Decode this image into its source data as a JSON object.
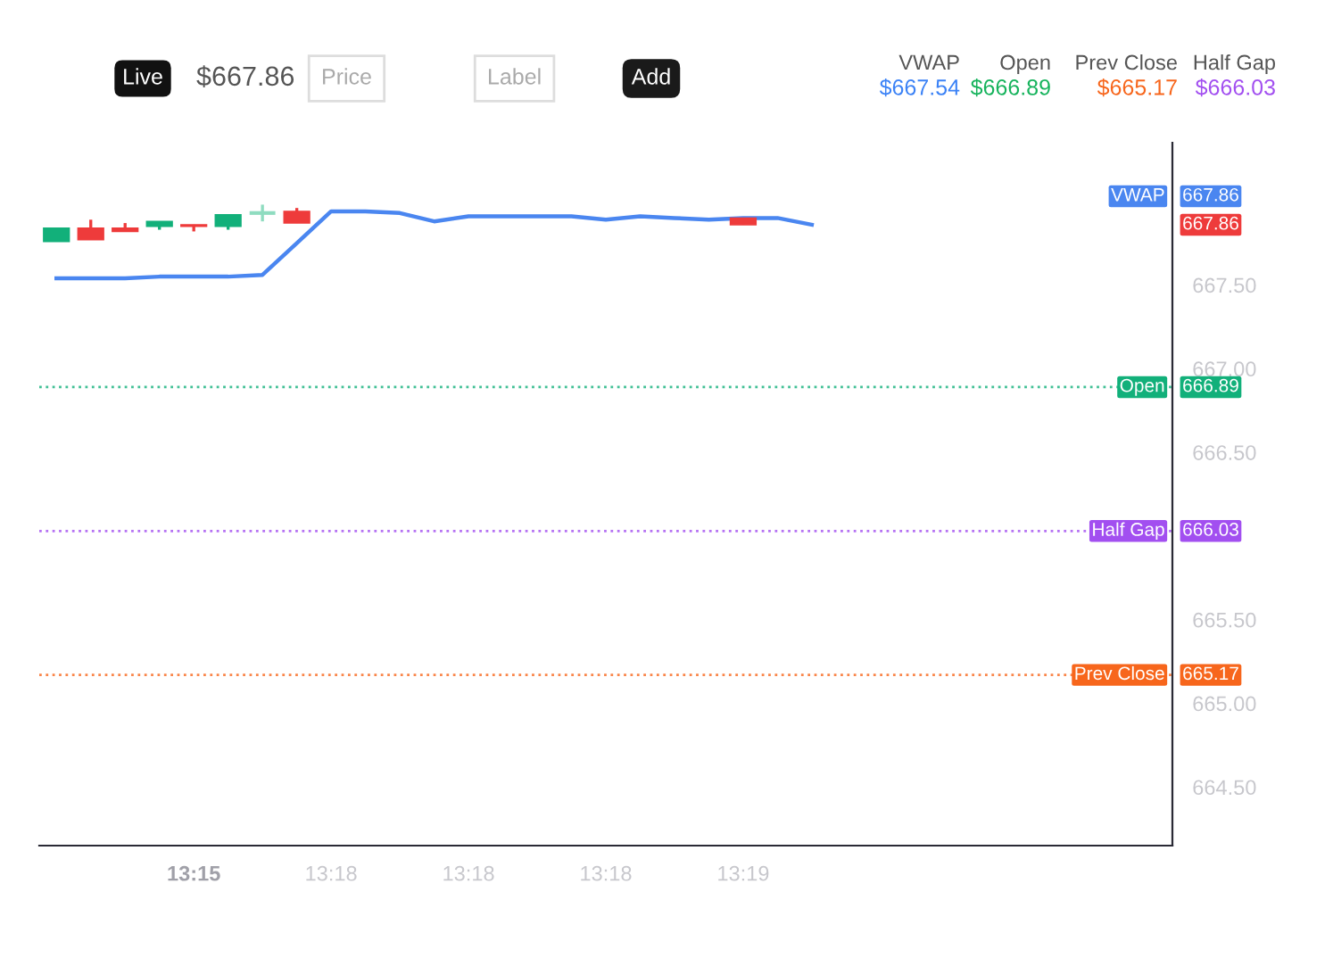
{
  "chart_data": {
    "type": "candlestick",
    "categories": [
      null,
      null,
      null,
      null,
      "13:15",
      null,
      null,
      null,
      "13:18",
      null,
      null,
      null,
      "13:18",
      null,
      null,
      null,
      "13:18",
      null,
      null,
      null,
      "13:19",
      null,
      null,
      null,
      null,
      null,
      null,
      null,
      null,
      null,
      null,
      null,
      null
    ],
    "ohlc": [
      [
        667.76,
        667.84,
        667.76,
        667.84
      ],
      [
        667.84,
        667.89,
        667.77,
        667.77
      ],
      [
        667.84,
        667.87,
        667.82,
        667.82
      ],
      [
        667.85,
        667.88,
        667.83,
        667.88
      ],
      [
        667.86,
        667.86,
        667.82,
        667.85
      ],
      [
        667.85,
        667.92,
        667.83,
        667.92
      ],
      [
        667.93,
        667.98,
        667.88,
        667.93
      ],
      [
        667.94,
        667.96,
        667.87,
        667.87
      ],
      null,
      null,
      null,
      null,
      null,
      null,
      null,
      null,
      null,
      null,
      null,
      null,
      [
        667.9,
        667.9,
        667.86,
        667.86
      ],
      null,
      null,
      null,
      null,
      null,
      null,
      null,
      null,
      null,
      null,
      null,
      null
    ],
    "colors": [
      "#12b07a",
      "#ee3b3b",
      "#ee3b3b",
      "#12b07a",
      "#ee3b3b",
      "#12b07a",
      "#8fdcc0",
      "#ee3b3b",
      null,
      null,
      null,
      null,
      null,
      null,
      null,
      null,
      null,
      null,
      null,
      null,
      "#ee3b3b",
      null,
      null,
      null,
      null,
      null,
      null,
      null,
      null,
      null,
      null,
      null,
      null
    ],
    "series": [
      {
        "name": "VWAP",
        "type": "line",
        "color": "#4a86f0",
        "values": [
          667.54,
          667.54,
          667.54,
          667.55,
          667.55,
          667.55,
          667.56,
          667.75,
          667.94,
          667.94,
          667.93,
          667.88,
          667.91,
          667.91,
          667.91,
          667.91,
          667.89,
          667.91,
          667.9,
          667.89,
          667.9,
          667.9,
          667.86,
          null,
          null,
          null,
          null,
          null,
          null,
          null,
          null,
          null,
          null
        ]
      }
    ],
    "ylim": [
      664.15,
      668.35
    ],
    "yticks": [
      {
        "value": 664.5,
        "label": "664.50"
      },
      {
        "value": 665.0,
        "label": "665.00"
      },
      {
        "value": 665.5,
        "label": "665.50"
      },
      {
        "value": 666.5,
        "label": "666.50"
      },
      {
        "value": 667.0,
        "label": "667.00"
      },
      {
        "value": 667.5,
        "label": "667.50"
      }
    ],
    "ref_lines": [
      {
        "axis": "y",
        "value": 666.89,
        "label": "Open",
        "color": "#12b07a",
        "line_style": "dotted"
      },
      {
        "axis": "y",
        "value": 666.03,
        "label": "Half Gap",
        "color": "#a24ff0",
        "line_style": "dotted"
      },
      {
        "axis": "y",
        "value": 665.17,
        "label": "Prev Close",
        "color": "#f7661c",
        "line_style": "dotted"
      }
    ],
    "annotations": [
      "Live",
      "$667.86",
      "Price",
      "Label",
      "Add",
      "VWAP",
      "$667.54",
      "Open",
      "$666.89",
      "Prev Close",
      "$665.17",
      "Half Gap",
      "$666.03",
      "667.86",
      "667.86",
      "666.89",
      "666.03",
      "665.17"
    ],
    "grid": false
  }
}
